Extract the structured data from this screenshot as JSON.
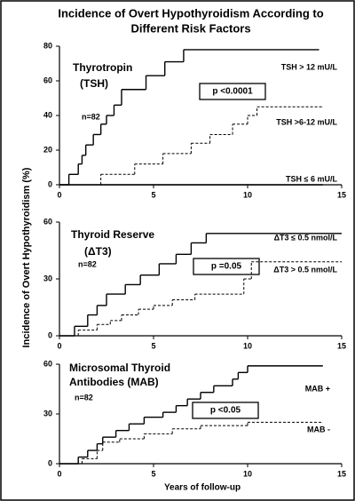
{
  "title": [
    "Incidence of Overt Hypothyroidism According to",
    "Different Risk Factors"
  ],
  "y_label": "Incidence of Overt Hypothyroidism (%)",
  "x_label": "Years of follow-up",
  "chart_data": [
    {
      "type": "step",
      "title": [
        "Thyrotropin",
        "(TSH)"
      ],
      "note": "n=82",
      "annotation": "p <0.0001",
      "xlim": [
        0,
        15
      ],
      "xticks": [
        0,
        5,
        10,
        15
      ],
      "ylim": [
        0,
        80
      ],
      "yticks": [
        0,
        20,
        40,
        60,
        80
      ],
      "series": [
        {
          "name": "TSH > 12 mU/L",
          "color": "#000000",
          "style": "solid",
          "x": [
            0,
            0.5,
            1.0,
            1.2,
            1.4,
            1.8,
            2.2,
            2.5,
            2.9,
            3.3,
            4.6,
            5.6,
            6.6,
            13.8
          ],
          "values": [
            0,
            6,
            12,
            17,
            23,
            29,
            35,
            40,
            46,
            55,
            63,
            71,
            78,
            78
          ]
        },
        {
          "name": "TSH >6-12 mU/L",
          "color": "#000000",
          "style": "dashed",
          "x": [
            0,
            2.2,
            4.0,
            5.5,
            7.0,
            8.0,
            9.2,
            10.0,
            10.5,
            14.0
          ],
          "values": [
            0,
            6,
            12,
            18,
            24,
            29,
            35,
            40,
            45,
            45
          ]
        },
        {
          "name": "TSH ≤ 6 mU/L",
          "color": "#000000",
          "style": "solid",
          "x": [
            0,
            14.0
          ],
          "values": [
            0,
            0
          ]
        }
      ]
    },
    {
      "type": "step",
      "title": [
        "Thyroid Reserve",
        "(ΔT3)"
      ],
      "note": "n=82",
      "annotation": "p =0.05",
      "xlim": [
        0,
        15
      ],
      "xticks": [
        0,
        5,
        10,
        15
      ],
      "ylim": [
        0,
        60
      ],
      "yticks": [
        0,
        30,
        60
      ],
      "series": [
        {
          "name": "ΔT3 ≤ 0.5 nmol/L",
          "color": "#000000",
          "style": "solid",
          "x": [
            0,
            0.8,
            1.5,
            2.0,
            2.5,
            3.5,
            4.3,
            5.3,
            6.2,
            7.0,
            7.8,
            15.0
          ],
          "values": [
            0,
            5,
            11,
            16,
            22,
            27,
            32,
            38,
            43,
            49,
            54,
            54
          ]
        },
        {
          "name": "ΔT3 > 0.5 nmol/L",
          "color": "#000000",
          "style": "dashed",
          "x": [
            0,
            1.0,
            2.0,
            2.7,
            3.3,
            4.2,
            5.0,
            6.0,
            7.2,
            9.8,
            10.2,
            15.0
          ],
          "values": [
            0,
            3,
            6,
            8,
            11,
            14,
            16,
            19,
            22,
            30,
            39,
            39
          ]
        }
      ]
    },
    {
      "type": "step",
      "title": [
        "Microsomal Thyroid",
        "Antibodies (MAB)"
      ],
      "note": "n=82",
      "annotation": "p <0.05",
      "xlim": [
        0,
        15
      ],
      "xticks": [
        0,
        5,
        10,
        15
      ],
      "ylim": [
        0,
        60
      ],
      "yticks": [
        0,
        30,
        60
      ],
      "series": [
        {
          "name": "MAB +",
          "color": "#000000",
          "style": "solid",
          "x": [
            0,
            1.0,
            1.5,
            2.0,
            2.3,
            3.0,
            3.7,
            4.5,
            5.5,
            6.2,
            6.8,
            7.5,
            8.2,
            9.2,
            9.5,
            10.0,
            14.0
          ],
          "values": [
            0,
            4,
            8,
            12,
            16,
            20,
            24,
            28,
            31,
            35,
            39,
            43,
            47,
            51,
            55,
            59,
            59
          ]
        },
        {
          "name": "MAB -",
          "color": "#000000",
          "style": "dashed",
          "x": [
            0,
            1.2,
            2.0,
            2.3,
            3.2,
            4.5,
            6.0,
            7.5,
            10.0,
            14.0
          ],
          "values": [
            0,
            3,
            8,
            13,
            15,
            18,
            21,
            23,
            25,
            25
          ]
        }
      ]
    }
  ]
}
